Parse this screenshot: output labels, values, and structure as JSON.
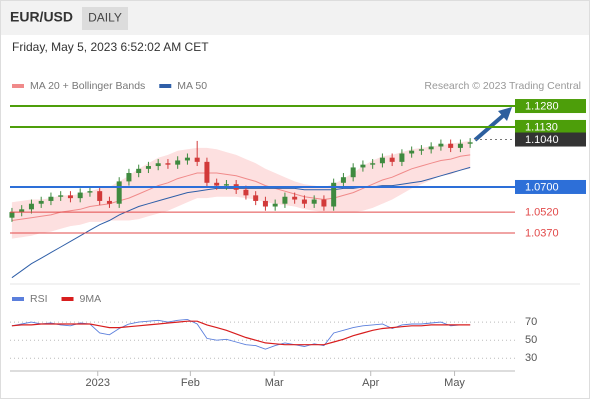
{
  "chart_data": [
    {
      "type": "candlestick",
      "title": "EUR/USD",
      "timeframe": "DAILY",
      "subtitle": "Friday, May 5, 2023 6:52:02 AM CET",
      "attribution": "Research © 2023 Trading Central",
      "up_color": "#3f8a3f",
      "down_color": "#d23a3a",
      "xlim": [
        -0.2,
        51.6
      ],
      "ylim": [
        1.0012,
        1.1359
      ],
      "open": [
        1.048,
        1.052,
        1.054,
        1.058,
        1.06,
        1.063,
        1.064,
        1.062,
        1.066,
        1.067,
        1.06,
        1.058,
        1.074,
        1.08,
        1.083,
        1.085,
        1.087,
        1.086,
        1.089,
        1.091,
        1.088,
        1.073,
        1.071,
        1.072,
        1.068,
        1.064,
        1.06,
        1.056,
        1.058,
        1.063,
        1.061,
        1.058,
        1.061,
        1.056,
        1.073,
        1.077,
        1.084,
        1.086,
        1.087,
        1.091,
        1.088,
        1.094,
        1.096,
        1.097,
        1.099,
        1.101,
        1.098,
        1.101
      ],
      "high": [
        1.055,
        1.057,
        1.061,
        1.063,
        1.066,
        1.067,
        1.067,
        1.069,
        1.07,
        1.07,
        1.063,
        1.077,
        1.083,
        1.086,
        1.088,
        1.09,
        1.09,
        1.092,
        1.094,
        1.103,
        1.091,
        1.076,
        1.075,
        1.075,
        1.071,
        1.067,
        1.063,
        1.061,
        1.066,
        1.066,
        1.064,
        1.064,
        1.064,
        1.076,
        1.08,
        1.087,
        1.089,
        1.09,
        1.094,
        1.094,
        1.097,
        1.099,
        1.1,
        1.102,
        1.104,
        1.104,
        1.104,
        1.105
      ],
      "low": [
        1.045,
        1.049,
        1.051,
        1.055,
        1.057,
        1.06,
        1.059,
        1.059,
        1.063,
        1.057,
        1.055,
        1.055,
        1.071,
        1.077,
        1.08,
        1.082,
        1.083,
        1.083,
        1.086,
        1.085,
        1.07,
        1.068,
        1.068,
        1.065,
        1.061,
        1.057,
        1.053,
        1.053,
        1.055,
        1.058,
        1.055,
        1.055,
        1.053,
        1.053,
        1.07,
        1.074,
        1.081,
        1.083,
        1.084,
        1.085,
        1.085,
        1.091,
        1.093,
        1.094,
        1.096,
        1.095,
        1.095,
        1.098
      ],
      "close": [
        1.052,
        1.054,
        1.058,
        1.06,
        1.063,
        1.064,
        1.062,
        1.066,
        1.067,
        1.06,
        1.058,
        1.074,
        1.08,
        1.083,
        1.085,
        1.087,
        1.086,
        1.089,
        1.091,
        1.088,
        1.073,
        1.071,
        1.072,
        1.068,
        1.064,
        1.06,
        1.056,
        1.058,
        1.063,
        1.061,
        1.058,
        1.061,
        1.056,
        1.073,
        1.077,
        1.084,
        1.086,
        1.087,
        1.091,
        1.088,
        1.094,
        1.096,
        1.097,
        1.099,
        1.101,
        1.098,
        1.101,
        1.102
      ],
      "series": [
        {
          "name": "MA 20 + Bollinger Bands",
          "color": "#f08a8a",
          "band_color": "#fde0e0",
          "values": [
            1.046,
            1.047,
            1.048,
            1.049,
            1.05,
            1.052,
            1.053,
            1.054,
            1.056,
            1.057,
            1.058,
            1.06,
            1.062,
            1.065,
            1.068,
            1.071,
            1.073,
            1.076,
            1.078,
            1.08,
            1.08,
            1.08,
            1.079,
            1.078,
            1.076,
            1.074,
            1.071,
            1.069,
            1.067,
            1.065,
            1.063,
            1.062,
            1.061,
            1.062,
            1.064,
            1.066,
            1.069,
            1.072,
            1.075,
            1.077,
            1.08,
            1.083,
            1.085,
            1.087,
            1.089,
            1.09,
            1.092,
            1.093
          ],
          "upper": [
            1.059,
            1.06,
            1.061,
            1.061,
            1.062,
            1.064,
            1.064,
            1.065,
            1.067,
            1.069,
            1.07,
            1.074,
            1.078,
            1.083,
            1.087,
            1.091,
            1.093,
            1.096,
            1.097,
            1.098,
            1.098,
            1.097,
            1.095,
            1.093,
            1.09,
            1.087,
            1.083,
            1.08,
            1.077,
            1.074,
            1.072,
            1.071,
            1.07,
            1.072,
            1.076,
            1.08,
            1.085,
            1.089,
            1.092,
            1.093,
            1.095,
            1.097,
            1.098,
            1.099,
            1.1,
            1.101,
            1.102,
            1.103
          ],
          "lower": [
            1.033,
            1.034,
            1.035,
            1.037,
            1.038,
            1.04,
            1.042,
            1.043,
            1.045,
            1.045,
            1.046,
            1.046,
            1.046,
            1.047,
            1.049,
            1.051,
            1.053,
            1.056,
            1.059,
            1.062,
            1.062,
            1.063,
            1.063,
            1.063,
            1.062,
            1.061,
            1.059,
            1.058,
            1.057,
            1.056,
            1.054,
            1.053,
            1.052,
            1.052,
            1.052,
            1.052,
            1.053,
            1.055,
            1.058,
            1.061,
            1.065,
            1.069,
            1.072,
            1.075,
            1.078,
            1.079,
            1.082,
            1.083
          ]
        },
        {
          "name": "MA 50",
          "color": "#2f5fa8",
          "values": [
            1.005,
            1.01,
            1.015,
            1.019,
            1.023,
            1.027,
            1.031,
            1.035,
            1.039,
            1.043,
            1.046,
            1.05,
            1.053,
            1.056,
            1.058,
            1.06,
            1.062,
            1.064,
            1.066,
            1.067,
            1.068,
            1.069,
            1.069,
            1.069,
            1.069,
            1.069,
            1.069,
            1.069,
            1.069,
            1.069,
            1.068,
            1.068,
            1.068,
            1.068,
            1.069,
            1.069,
            1.07,
            1.07,
            1.071,
            1.071,
            1.072,
            1.073,
            1.074,
            1.076,
            1.078,
            1.08,
            1.082,
            1.084
          ]
        }
      ],
      "levels": [
        {
          "value": 1.128,
          "label": "1.1280",
          "color": "#4d9e0a",
          "style": "solid",
          "box": true
        },
        {
          "value": 1.113,
          "label": "1.1130",
          "color": "#4d9e0a",
          "style": "solid",
          "box": true
        },
        {
          "value": 1.104,
          "label": "1.1040",
          "color": "#333333",
          "style": "dotted",
          "box": true
        },
        {
          "value": 1.07,
          "label": "1.0700",
          "color": "#2d6fd8",
          "style": "solid",
          "box": true
        },
        {
          "value": 1.052,
          "label": "1.0520",
          "color": "#e24a4a",
          "style": "solid",
          "box": false
        },
        {
          "value": 1.037,
          "label": "1.0370",
          "color": "#e24a4a",
          "style": "solid",
          "box": false
        }
      ]
    },
    {
      "type": "line",
      "xlim": [
        -0.2,
        51.6
      ],
      "ylim": [
        17,
        105.6
      ],
      "yticks": [
        70,
        50,
        30
      ],
      "xticks": [
        {
          "value": 8.8,
          "label": "2023"
        },
        {
          "value": 18.3,
          "label": "Feb"
        },
        {
          "value": 26.9,
          "label": "Mar"
        },
        {
          "value": 36.8,
          "label": "Apr"
        },
        {
          "value": 45.4,
          "label": "May"
        }
      ],
      "series": [
        {
          "name": "RSI",
          "color": "#5b7fdc",
          "values": [
            66,
            68,
            70,
            68,
            69,
            67,
            66,
            69,
            68,
            58,
            56,
            63,
            68,
            70,
            71,
            72,
            70,
            72,
            73,
            68,
            52,
            50,
            51,
            48,
            45,
            44,
            40,
            44,
            47,
            45,
            43,
            46,
            44,
            58,
            61,
            64,
            66,
            67,
            68,
            63,
            67,
            68,
            68,
            69,
            70,
            66,
            67,
            67
          ]
        },
        {
          "name": "9MA",
          "color": "#d81e1e",
          "values": [
            66,
            67,
            67,
            68,
            68,
            68,
            68,
            68,
            68,
            66,
            64,
            64,
            65,
            66,
            67,
            68,
            69,
            70,
            71,
            71,
            67,
            64,
            61,
            57,
            53,
            50,
            47,
            46,
            45,
            45,
            45,
            45,
            45,
            48,
            51,
            55,
            58,
            61,
            63,
            64,
            65,
            66,
            66,
            67,
            67,
            67,
            67,
            67
          ]
        }
      ]
    }
  ]
}
